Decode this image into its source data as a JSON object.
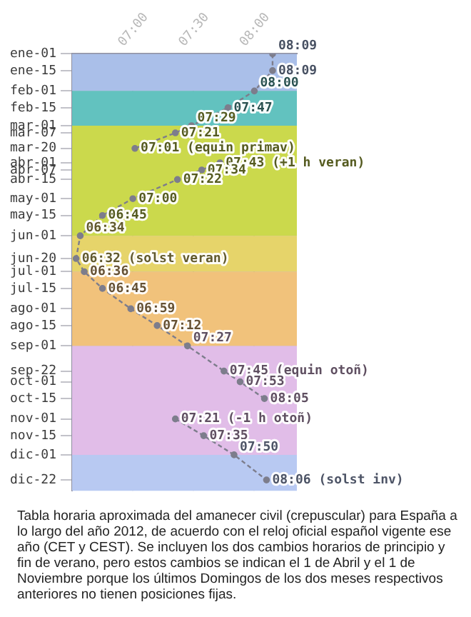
{
  "chart_data": {
    "type": "line",
    "orientation": "horizontal",
    "xlim": [
      6.5,
      8.35
    ],
    "xticks": [
      {
        "value": 7,
        "label": "07:00"
      },
      {
        "value": 7.5,
        "label": "07:30"
      },
      {
        "value": 8,
        "label": "08:00"
      }
    ],
    "ylim": [
      "2012-12-31",
      "2012-01-01"
    ],
    "yticks": [
      {
        "value": "2012-01-01",
        "label": "ene-01"
      },
      {
        "value": "2012-01-15",
        "label": "ene-15"
      },
      {
        "value": "2012-02-01",
        "label": "feb-01"
      },
      {
        "value": "2012-02-15",
        "label": "feb-15"
      },
      {
        "value": "2012-03-01",
        "label": "mar-01"
      },
      {
        "value": "2012-03-07",
        "label": "mar-07"
      },
      {
        "value": "2012-03-20",
        "label": "mar-20"
      },
      {
        "value": "2012-04-01",
        "label": "abr-01"
      },
      {
        "value": "2012-04-07",
        "label": "abr-07"
      },
      {
        "value": "2012-04-15",
        "label": "abr-15"
      },
      {
        "value": "2012-05-01",
        "label": "may-01"
      },
      {
        "value": "2012-05-15",
        "label": "may-15"
      },
      {
        "value": "2012-06-01",
        "label": "jun-01"
      },
      {
        "value": "2012-06-20",
        "label": "jun-20"
      },
      {
        "value": "2012-07-01",
        "label": "jul-01"
      },
      {
        "value": "2012-07-15",
        "label": "jul-15"
      },
      {
        "value": "2012-08-01",
        "label": "ago-01"
      },
      {
        "value": "2012-08-15",
        "label": "ago-15"
      },
      {
        "value": "2012-09-01",
        "label": "sep-01"
      },
      {
        "value": "2012-09-22",
        "label": "sep-22"
      },
      {
        "value": "2012-10-01",
        "label": "oct-01"
      },
      {
        "value": "2012-10-15",
        "label": "oct-15"
      },
      {
        "value": "2012-11-01",
        "label": "nov-01"
      },
      {
        "value": "2012-11-15",
        "label": "nov-15"
      },
      {
        "value": "2012-12-01",
        "label": "dic-01"
      },
      {
        "value": "2012-12-22",
        "label": "dic-22"
      }
    ],
    "series": [
      {
        "color": "#7d7d8c",
        "x": [
          "2012-01-01",
          "2012-01-15",
          "2012-02-01",
          "2012-02-15",
          "2012-03-01",
          "2012-03-07",
          "2012-03-20"
        ],
        "values": [
          8.15,
          8.15,
          8,
          7.783,
          7.483,
          7.35,
          7.017
        ],
        "value_labels": [
          "08:09",
          "08:09",
          "08:00",
          "07:47",
          "07:29",
          "07:21",
          "07:01 (equin primav)"
        ]
      },
      {
        "color": "#7d7d8c",
        "x": [
          "2012-04-01",
          "2012-04-07",
          "2012-04-15",
          "2012-05-01",
          "2012-05-15",
          "2012-06-01",
          "2012-06-20",
          "2012-07-01",
          "2012-07-15",
          "2012-08-01",
          "2012-08-15",
          "2012-09-01",
          "2012-09-22",
          "2012-10-01",
          "2012-10-15"
        ],
        "values": [
          7.717,
          7.567,
          7.367,
          7,
          6.75,
          6.567,
          6.533,
          6.6,
          6.75,
          6.983,
          7.2,
          7.45,
          7.75,
          7.883,
          8.083
        ],
        "value_labels": [
          "07:43 (+1 h veran)",
          "07:34",
          "07:22",
          "07:00",
          "06:45",
          "06:34",
          "06:32 (solst veran)",
          "06:36",
          "06:45",
          "06:59",
          "07:12",
          "07:27",
          "07:45 (equin otoñ)",
          "07:53",
          "08:05"
        ]
      },
      {
        "color": "#7d7d8c",
        "x": [
          "2012-11-01",
          "2012-11-15",
          "2012-12-01",
          "2012-12-22"
        ],
        "values": [
          7.35,
          7.583,
          7.833,
          8.1
        ],
        "value_labels": [
          "07:21 (-1 h otoñ)",
          "07:35",
          "07:50",
          "08:06 (solst inv)"
        ]
      }
    ],
    "bands": [
      {
        "axis": "y",
        "from": "2012-01-01",
        "to": "2012-02-01",
        "color": "#aabfe9"
      },
      {
        "axis": "y",
        "from": "2012-02-01",
        "to": "2012-03-01",
        "color": "#62c2bf"
      },
      {
        "axis": "y",
        "from": "2012-03-01",
        "to": "2012-06-01",
        "color": "#cbd94c"
      },
      {
        "axis": "y",
        "from": "2012-06-01",
        "to": "2012-07-01",
        "color": "#e6d46a"
      },
      {
        "axis": "y",
        "from": "2012-07-01",
        "to": "2012-09-01",
        "color": "#f1c27b"
      },
      {
        "axis": "y",
        "from": "2012-09-01",
        "to": "2012-12-01",
        "color": "#e1bde8"
      },
      {
        "axis": "y",
        "from": "2012-12-01",
        "to": "2012-12-31",
        "color": "#b8c9f2"
      }
    ],
    "grid": true,
    "marker": "circle",
    "line_style": "dashed",
    "legend": false,
    "annotations": [
      "Tabla horaria aproximada del amanecer civil (crepuscular) para España a lo largo del año 2012, de acuerdo con el reloj oficial español vigente ese año (CET y CEST). Se incluyen los dos cambios horarios de principio y fin de verano, pero estos cambios se indican el 1 de Abril y el 1 de Noviembre porque los últimos Domingos de los dos meses respectivos anteriores no tienen posiciones fijas."
    ]
  }
}
